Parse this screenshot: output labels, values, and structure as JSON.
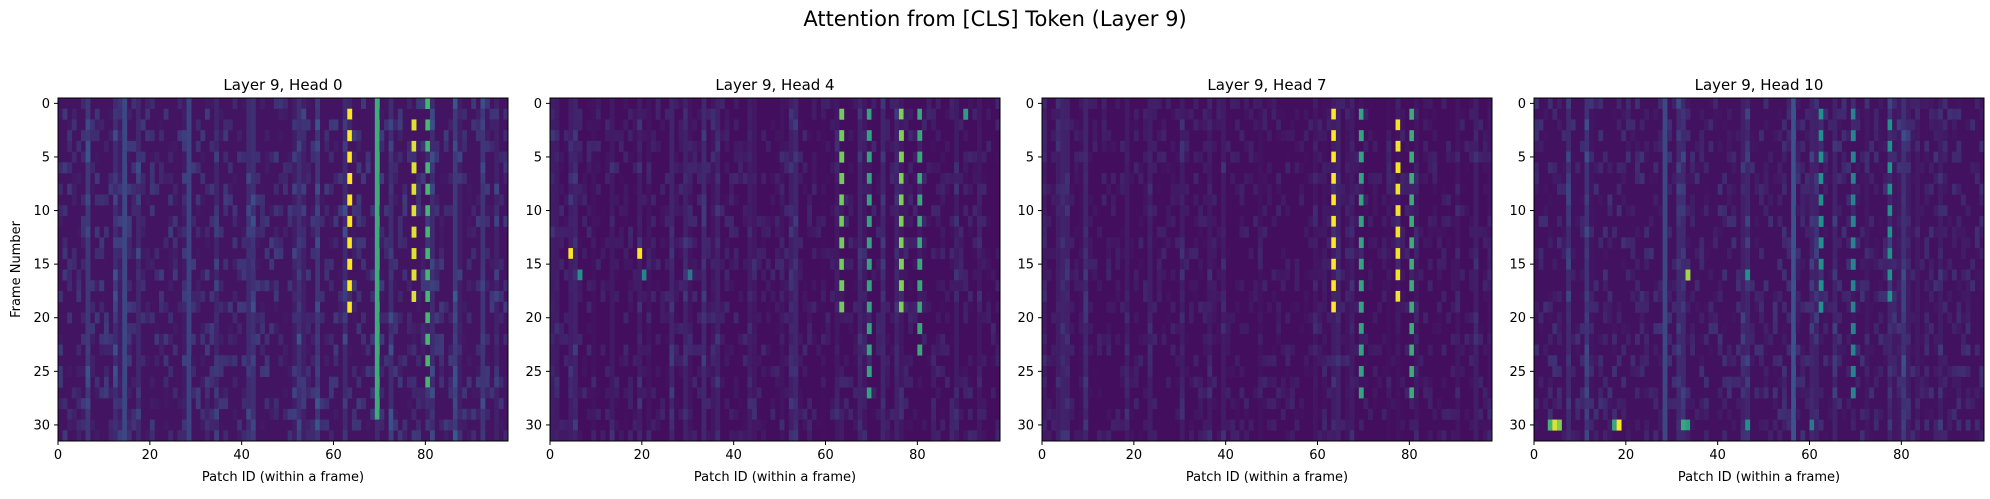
{
  "figure": {
    "suptitle": "Attention from [CLS] Token (Layer 9)"
  },
  "chart_data": [
    {
      "type": "heatmap",
      "title": "Layer 9, Head 0",
      "xlabel": "Patch ID (within a frame)",
      "ylabel": "Frame Number",
      "xlim": [
        0,
        97
      ],
      "ylim": [
        31,
        0
      ],
      "xticks": [
        0,
        20,
        40,
        60,
        80
      ],
      "yticks": [
        0,
        5,
        10,
        15,
        20,
        25,
        30
      ],
      "colormap": "viridis",
      "n_frames": 32,
      "n_patches": 98,
      "background_level": 0.06,
      "noise_level": 0.12,
      "stripes": [
        {
          "patch": 63,
          "frames": [
            1,
            19
          ],
          "level": 1.0,
          "every_other": true
        },
        {
          "patch": 69,
          "frames": [
            0,
            29
          ],
          "level": 0.62
        },
        {
          "patch": 77,
          "frames": [
            2,
            19
          ],
          "level": 0.95,
          "every_other": true
        },
        {
          "patch": 80,
          "frames": [
            0,
            27
          ],
          "level": 0.66,
          "every_other": true
        },
        {
          "patch": 14,
          "frames": [
            0,
            31
          ],
          "level": 0.22
        },
        {
          "patch": 28,
          "frames": [
            0,
            31
          ],
          "level": 0.2
        }
      ],
      "spots": []
    },
    {
      "type": "heatmap",
      "title": "Layer 9, Head 4",
      "xlabel": "Patch ID (within a frame)",
      "ylabel": "",
      "xlim": [
        0,
        97
      ],
      "ylim": [
        31,
        0
      ],
      "xticks": [
        0,
        20,
        40,
        60,
        80
      ],
      "yticks": [
        0,
        5,
        10,
        15,
        20,
        25,
        30
      ],
      "colormap": "viridis",
      "n_frames": 32,
      "n_patches": 98,
      "background_level": 0.04,
      "noise_level": 0.08,
      "stripes": [
        {
          "patch": 63,
          "frames": [
            1,
            19
          ],
          "level": 0.78,
          "every_other": true
        },
        {
          "patch": 69,
          "frames": [
            1,
            27
          ],
          "level": 0.58,
          "every_other": true
        },
        {
          "patch": 76,
          "frames": [
            1,
            19
          ],
          "level": 0.8,
          "every_other": true
        },
        {
          "patch": 80,
          "frames": [
            1,
            23
          ],
          "level": 0.6,
          "every_other": true
        },
        {
          "patch": 90,
          "frames": [
            1,
            1
          ],
          "level": 0.55
        }
      ],
      "spots": [
        {
          "patch": 4,
          "frame": 14,
          "level": 1.0
        },
        {
          "patch": 19,
          "frame": 14,
          "level": 1.0
        },
        {
          "patch": 6,
          "frame": 16,
          "level": 0.5
        },
        {
          "patch": 20,
          "frame": 16,
          "level": 0.45
        },
        {
          "patch": 30,
          "frame": 16,
          "level": 0.4
        }
      ]
    },
    {
      "type": "heatmap",
      "title": "Layer 9, Head 7",
      "xlabel": "Patch ID (within a frame)",
      "ylabel": "",
      "xlim": [
        0,
        97
      ],
      "ylim": [
        31,
        0
      ],
      "xticks": [
        0,
        20,
        40,
        60,
        80
      ],
      "yticks": [
        0,
        5,
        10,
        15,
        20,
        25,
        30
      ],
      "colormap": "viridis",
      "n_frames": 32,
      "n_patches": 98,
      "background_level": 0.04,
      "noise_level": 0.07,
      "stripes": [
        {
          "patch": 63,
          "frames": [
            1,
            19
          ],
          "level": 1.0,
          "every_other": true
        },
        {
          "patch": 69,
          "frames": [
            1,
            27
          ],
          "level": 0.58,
          "every_other": true
        },
        {
          "patch": 77,
          "frames": [
            2,
            19
          ],
          "level": 0.98,
          "every_other": true
        },
        {
          "patch": 80,
          "frames": [
            1,
            27
          ],
          "level": 0.62,
          "every_other": true
        }
      ],
      "spots": []
    },
    {
      "type": "heatmap",
      "title": "Layer 9, Head 10",
      "xlabel": "Patch ID (within a frame)",
      "ylabel": "",
      "xlim": [
        0,
        97
      ],
      "ylim": [
        31,
        0
      ],
      "xticks": [
        0,
        20,
        40,
        60,
        80
      ],
      "yticks": [
        0,
        5,
        10,
        15,
        20,
        25,
        30
      ],
      "colormap": "viridis",
      "n_frames": 32,
      "n_patches": 98,
      "background_level": 0.05,
      "noise_level": 0.1,
      "stripes": [
        {
          "patch": 62,
          "frames": [
            1,
            19
          ],
          "level": 0.5,
          "every_other": true
        },
        {
          "patch": 69,
          "frames": [
            1,
            27
          ],
          "level": 0.45,
          "every_other": true
        },
        {
          "patch": 77,
          "frames": [
            2,
            19
          ],
          "level": 0.5,
          "every_other": true
        },
        {
          "patch": 56,
          "frames": [
            0,
            31
          ],
          "level": 0.25
        },
        {
          "patch": 28,
          "frames": [
            0,
            31
          ],
          "level": 0.22
        }
      ],
      "spots": [
        {
          "patch": 3,
          "frame": 30,
          "level": 0.65
        },
        {
          "patch": 4,
          "frame": 30,
          "level": 0.95
        },
        {
          "patch": 5,
          "frame": 30,
          "level": 0.8
        },
        {
          "patch": 17,
          "frame": 30,
          "level": 0.6
        },
        {
          "patch": 18,
          "frame": 30,
          "level": 1.0
        },
        {
          "patch": 32,
          "frame": 30,
          "level": 0.6
        },
        {
          "patch": 33,
          "frame": 30,
          "level": 0.55
        },
        {
          "patch": 46,
          "frame": 30,
          "level": 0.5
        },
        {
          "patch": 33,
          "frame": 16,
          "level": 0.85
        },
        {
          "patch": 46,
          "frame": 16,
          "level": 0.5
        },
        {
          "patch": 60,
          "frame": 30,
          "level": 0.4
        }
      ]
    }
  ]
}
